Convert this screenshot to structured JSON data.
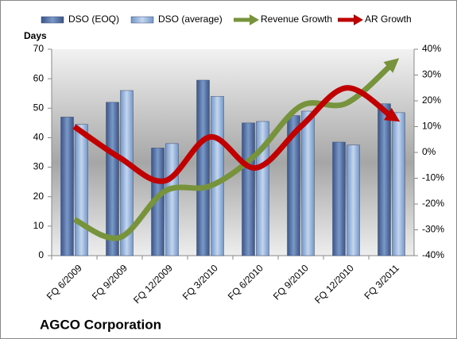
{
  "chart_data": {
    "type": "bar",
    "title": "AGCO Corporation",
    "y_label": "Days",
    "categories": [
      "FQ 6/2009",
      "FQ 9/2009",
      "FQ 12/2009",
      "FQ 3/2010",
      "FQ 6/2010",
      "FQ 9/2010",
      "FQ 12/2010",
      "FQ 3/2011"
    ],
    "series": [
      {
        "name": "DSO (EOQ)",
        "color": "#4f6fa3",
        "values": [
          47,
          52,
          36.5,
          59.5,
          45,
          47.5,
          38.5,
          51.5
        ]
      },
      {
        "name": "DSO (average)",
        "color": "#93b3de",
        "values": [
          44.5,
          56,
          38,
          54,
          45.5,
          49,
          37.5,
          48.5
        ]
      },
      {
        "name": "Revenue Growth",
        "type": "line",
        "axis": "y2",
        "color": "#77933c",
        "values": [
          -26,
          -33,
          -15,
          -13,
          -1,
          18,
          19,
          34
        ]
      },
      {
        "name": "AR Growth",
        "type": "line",
        "axis": "y2",
        "color": "#c00000",
        "values": [
          10,
          -2,
          -11,
          6,
          -6,
          10,
          25,
          14
        ]
      }
    ],
    "ylim": [
      0,
      70
    ],
    "yticks": [
      0,
      10,
      20,
      30,
      40,
      50,
      60,
      70
    ],
    "y2lim": [
      -40,
      40
    ],
    "y2ticks": [
      {
        "value": -40,
        "label": "-40%"
      },
      {
        "value": -30,
        "label": "-30%"
      },
      {
        "value": -20,
        "label": "-20%"
      },
      {
        "value": -10,
        "label": "-10%"
      },
      {
        "value": 0,
        "label": "0%"
      },
      {
        "value": 10,
        "label": "10%"
      },
      {
        "value": 20,
        "label": "20%"
      },
      {
        "value": 30,
        "label": "30%"
      },
      {
        "value": 40,
        "label": "40%"
      }
    ]
  }
}
